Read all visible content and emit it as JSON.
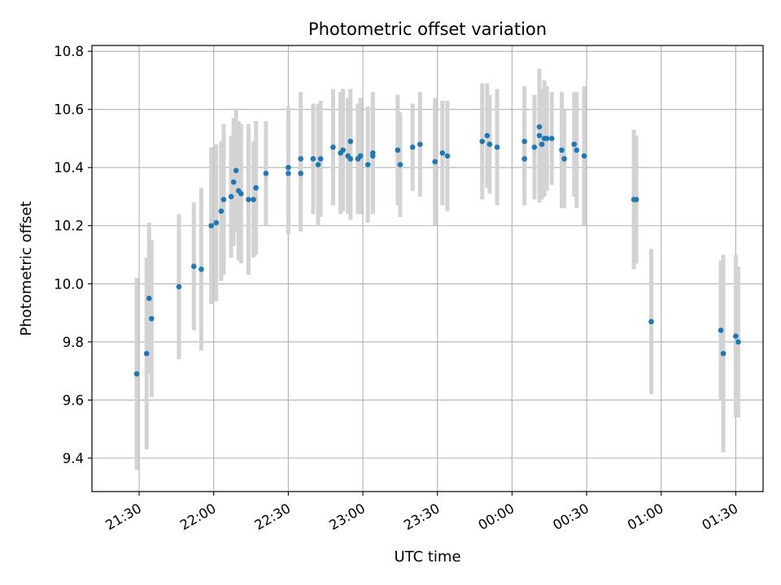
{
  "chart_data": {
    "type": "scatter",
    "title": "Photometric offset variation",
    "xlabel": "UTC time",
    "ylabel": "Photometric offset",
    "x_ticks": [
      "21:30",
      "22:00",
      "22:30",
      "23:00",
      "23:30",
      "00:00",
      "00:30",
      "01:00",
      "01:30"
    ],
    "y_ticks": [
      "9.4",
      "9.6",
      "9.8",
      "10.0",
      "10.2",
      "10.4",
      "10.6",
      "10.8"
    ],
    "xlim": [
      "21:11",
      "01:41"
    ],
    "ylim": [
      9.285,
      10.82
    ],
    "grid": true,
    "error_bar_color": "#d3d3d3",
    "marker_color": "#1f77b4",
    "series": [
      {
        "x": [
          "21:29",
          "21:33",
          "21:34",
          "21:35",
          "21:46",
          "21:52",
          "21:55",
          "21:59",
          "22:01",
          "22:03",
          "22:04",
          "22:07",
          "22:08",
          "22:09",
          "22:10",
          "22:11",
          "22:14",
          "22:16",
          "22:17",
          "22:21",
          "22:30",
          "22:30",
          "22:35",
          "22:35",
          "22:40",
          "22:42",
          "22:43",
          "22:48",
          "22:51",
          "22:52",
          "22:54",
          "22:55",
          "22:55",
          "22:58",
          "22:59",
          "23:02",
          "23:04",
          "23:04",
          "23:14",
          "23:15",
          "23:20",
          "23:23",
          "23:29",
          "23:32",
          "23:34",
          "23:48",
          "23:50",
          "23:51",
          "23:54",
          "24:05",
          "24:05",
          "24:09",
          "24:11",
          "24:11",
          "24:12",
          "24:13",
          "24:14",
          "24:16",
          "24:20",
          "24:21",
          "24:25",
          "24:26",
          "24:29",
          "24:49",
          "24:50",
          "24:56",
          "25:24",
          "25:25",
          "25:30",
          "25:31"
        ],
        "y": [
          9.69,
          9.76,
          9.95,
          9.88,
          9.99,
          10.06,
          10.05,
          10.2,
          10.21,
          10.25,
          10.29,
          10.3,
          10.35,
          10.39,
          10.32,
          10.31,
          10.29,
          10.29,
          10.33,
          10.38,
          10.38,
          10.4,
          10.43,
          10.38,
          10.43,
          10.41,
          10.43,
          10.47,
          10.45,
          10.46,
          10.44,
          10.43,
          10.49,
          10.43,
          10.44,
          10.41,
          10.45,
          10.44,
          10.46,
          10.41,
          10.47,
          10.48,
          10.42,
          10.45,
          10.44,
          10.49,
          10.51,
          10.48,
          10.47,
          10.43,
          10.49,
          10.47,
          10.54,
          10.51,
          10.48,
          10.5,
          10.5,
          10.5,
          10.46,
          10.43,
          10.48,
          10.46,
          10.44,
          10.29,
          10.29,
          9.87,
          9.84,
          9.76,
          9.82,
          9.8
        ],
        "err": [
          0.33,
          0.33,
          0.26,
          0.27,
          0.25,
          0.22,
          0.28,
          0.27,
          0.27,
          0.24,
          0.26,
          0.21,
          0.22,
          0.21,
          0.24,
          0.24,
          0.26,
          0.2,
          0.23,
          0.18,
          0.21,
          0.21,
          0.23,
          0.2,
          0.19,
          0.21,
          0.2,
          0.2,
          0.21,
          0.21,
          0.2,
          0.21,
          0.18,
          0.19,
          0.2,
          0.2,
          0.21,
          0.2,
          0.19,
          0.18,
          0.15,
          0.18,
          0.22,
          0.18,
          0.19,
          0.2,
          0.18,
          0.17,
          0.2,
          0.16,
          0.19,
          0.18,
          0.2,
          0.23,
          0.19,
          0.2,
          0.18,
          0.16,
          0.2,
          0.17,
          0.18,
          0.2,
          0.24,
          0.24,
          0.22,
          0.25,
          0.24,
          0.34,
          0.28,
          0.26
        ]
      }
    ]
  }
}
